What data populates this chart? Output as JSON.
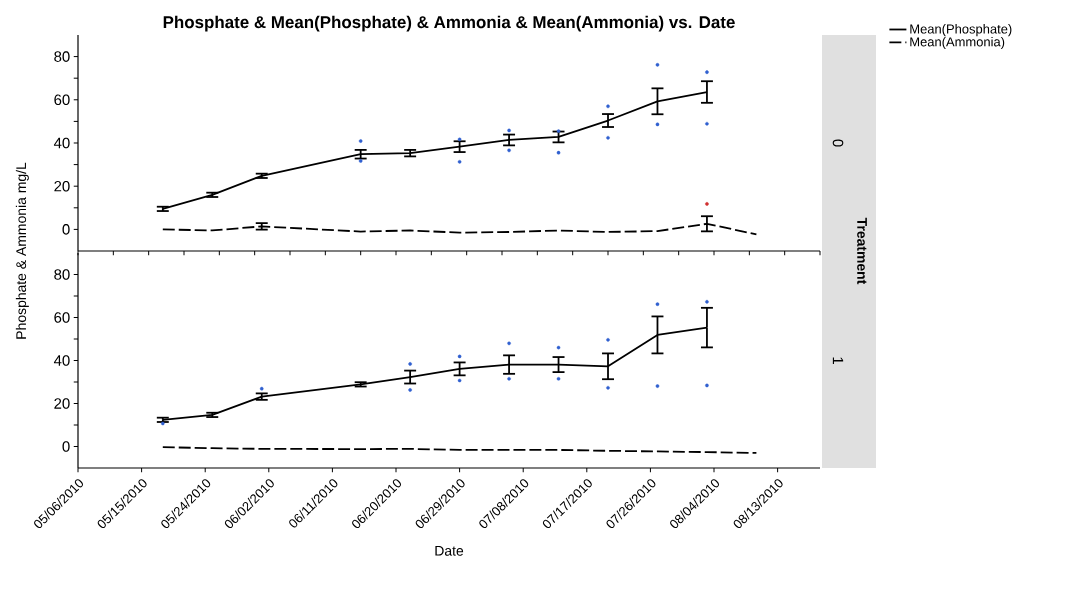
{
  "chart_data": [
    {
      "type": "line",
      "title": "Phosphate & Mean(Phosphate) & Ammonia & Mean(Ammonia) vs. Date",
      "ylabel": "Phosphate & Ammonia mg/L",
      "xlim": [
        "2010-05-06",
        "2010-08-19"
      ],
      "ylim": [
        -10,
        90
      ],
      "yticks": [
        0,
        {
          "value": 10,
          "label": null
        },
        20,
        {
          "value": 30,
          "label": null
        },
        40,
        {
          "value": 50,
          "label": null
        },
        60,
        {
          "value": 70,
          "label": null
        },
        80
      ],
      "tick_labels": "y",
      "legend": "top right",
      "grid": false,
      "annotations": [
        "0",
        "Treatment"
      ],
      "series": [
        {
          "name": "Mean(Phosphate)",
          "color": "#000000",
          "line_style": "solid",
          "marker": "none",
          "x": [
            "2010-05-18",
            "2010-05-25",
            "2010-06-01",
            "2010-06-15",
            "2010-06-22",
            "2010-06-29",
            "2010-07-06",
            "2010-07-13",
            "2010-07-20",
            "2010-07-27",
            "2010-08-03"
          ],
          "values": [
            9.5,
            16,
            24.8,
            34.8,
            35.3,
            38.3,
            41.4,
            42.8,
            50.4,
            59.3,
            63.6
          ],
          "errors": [
            1,
            1,
            1,
            2,
            1.5,
            2.5,
            2.5,
            2.5,
            3,
            6,
            5
          ]
        },
        {
          "name": "Mean(Ammonia)",
          "color": "#000000",
          "line_style": "dashed",
          "marker": "none",
          "x": [
            "2010-05-18",
            "2010-05-25",
            "2010-06-01",
            "2010-06-15",
            "2010-06-22",
            "2010-06-29",
            "2010-07-06",
            "2010-07-13",
            "2010-07-20",
            "2010-07-27",
            "2010-08-03",
            "2010-08-10"
          ],
          "values": [
            0,
            -0.5,
            1.4,
            -1,
            -0.5,
            -1.5,
            -1.2,
            -0.5,
            -1.2,
            -0.8,
            2.6,
            -2.3
          ],
          "errors": [
            null,
            null,
            1.5,
            null,
            null,
            null,
            null,
            null,
            null,
            null,
            3.5,
            null
          ]
        },
        {
          "type": "scatter",
          "color": "#3060d0",
          "marker": "circle",
          "x": [
            "2010-06-15",
            "2010-06-15",
            "2010-06-29",
            "2010-06-29",
            "2010-07-06",
            "2010-07-06",
            "2010-07-13",
            "2010-07-13",
            "2010-07-20",
            "2010-07-20",
            "2010-07-27",
            "2010-07-27",
            "2010-08-03",
            "2010-08-03"
          ],
          "values": [
            40.9,
            31.7,
            41.7,
            31.3,
            45.8,
            36.6,
            45.5,
            35.5,
            57,
            42.4,
            76.2,
            48.6,
            72.8,
            48.9
          ]
        },
        {
          "type": "scatter",
          "color": "#d03030",
          "marker": "circle",
          "x": [
            "2010-08-03"
          ],
          "values": [
            11.8
          ]
        }
      ]
    },
    {
      "type": "line",
      "xlabel": "Date",
      "xlim": [
        "2010-05-06",
        "2010-08-19"
      ],
      "xticks": [
        {
          "value": "2010-05-06",
          "label": "05/06/2010"
        },
        {
          "value": "2010-05-15",
          "label": "05/15/2010"
        },
        {
          "value": "2010-05-24",
          "label": "05/24/2010"
        },
        {
          "value": "2010-06-02",
          "label": "06/02/2010"
        },
        {
          "value": "2010-06-11",
          "label": "06/11/2010"
        },
        {
          "value": "2010-06-20",
          "label": "06/20/2010"
        },
        {
          "value": "2010-06-29",
          "label": "06/29/2010"
        },
        {
          "value": "2010-07-08",
          "label": "07/08/2010"
        },
        {
          "value": "2010-07-17",
          "label": "07/17/2010"
        },
        {
          "value": "2010-07-26",
          "label": "07/26/2010"
        },
        {
          "value": "2010-08-04",
          "label": "08/04/2010"
        },
        {
          "value": "2010-08-13",
          "label": "08/13/2010"
        }
      ],
      "ylim": [
        -10,
        90
      ],
      "yticks": [
        0,
        {
          "value": 10,
          "label": null
        },
        20,
        {
          "value": 30,
          "label": null
        },
        40,
        {
          "value": 50,
          "label": null
        },
        60,
        {
          "value": 70,
          "label": null
        },
        80
      ],
      "grid": false,
      "annotations": [
        "1"
      ],
      "series": [
        {
          "color": "#000000",
          "line_style": "solid",
          "marker": "none",
          "x": [
            "2010-05-18",
            "2010-05-25",
            "2010-06-01",
            "2010-06-15",
            "2010-06-22",
            "2010-06-29",
            "2010-07-06",
            "2010-07-13",
            "2010-07-20",
            "2010-07-27",
            "2010-08-03"
          ],
          "values": [
            12.4,
            14.7,
            23.2,
            28.9,
            32.3,
            36.1,
            38.1,
            38.1,
            37.3,
            51.9,
            55.3
          ],
          "errors": [
            1,
            1,
            1.5,
            1,
            3,
            3,
            4.3,
            3.5,
            6,
            8.6,
            9.2
          ]
        },
        {
          "color": "#000000",
          "line_style": "dashed",
          "marker": "none",
          "x": [
            "2010-05-18",
            "2010-05-25",
            "2010-06-01",
            "2010-06-15",
            "2010-06-22",
            "2010-06-29",
            "2010-07-06",
            "2010-07-13",
            "2010-07-20",
            "2010-07-27",
            "2010-08-03",
            "2010-08-10"
          ],
          "values": [
            -0.3,
            -0.8,
            -1.1,
            -1.2,
            -1.1,
            -1.6,
            -1.6,
            -1.6,
            -2,
            -2.3,
            -2.6,
            -3
          ]
        },
        {
          "type": "scatter",
          "color": "#3060d0",
          "marker": "circle",
          "x": [
            "2010-05-18",
            "2010-06-01",
            "2010-06-22",
            "2010-06-22",
            "2010-06-29",
            "2010-06-29",
            "2010-07-06",
            "2010-07-06",
            "2010-07-13",
            "2010-07-13",
            "2010-07-20",
            "2010-07-20",
            "2010-07-27",
            "2010-07-27",
            "2010-08-03",
            "2010-08-03"
          ],
          "values": [
            10.7,
            26.9,
            38.4,
            26.3,
            41.9,
            30.7,
            48,
            31.5,
            46,
            31.5,
            49.6,
            27.3,
            66.2,
            28.1,
            67.3,
            28.4
          ]
        }
      ]
    }
  ]
}
